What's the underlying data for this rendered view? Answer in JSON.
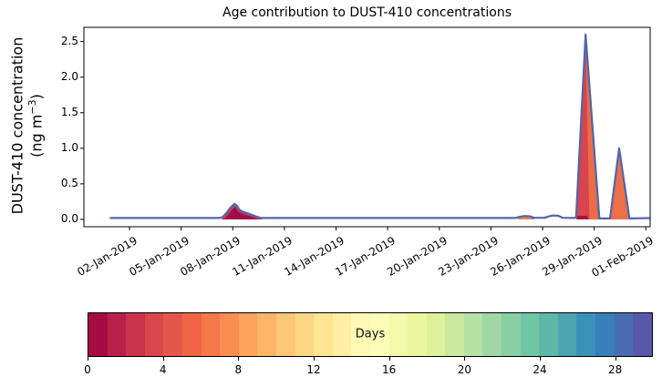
{
  "figure": {
    "ylabel_line1": "DUST-410 concentration",
    "ylabel_unit_prefix": "(ng m",
    "ylabel_unit_exponent": "−3",
    "ylabel_unit_suffix": ")"
  },
  "chart_data": {
    "type": "area",
    "subtype": "stacked-area-colored-by-age",
    "title": "Age contribution to DUST-410 concentrations",
    "ylabel": "DUST-410 concentration (ng m⁻³)",
    "grid": false,
    "x_axis": {
      "tick_labels": [
        "02-Jan-2019",
        "05-Jan-2019",
        "08-Jan-2019",
        "11-Jan-2019",
        "14-Jan-2019",
        "17-Jan-2019",
        "20-Jan-2019",
        "23-Jan-2019",
        "26-Jan-2019",
        "29-Jan-2019",
        "01-Feb-2019"
      ],
      "tick_day_offsets": [
        0,
        3,
        6,
        9,
        12,
        15,
        18,
        21,
        24,
        27,
        30
      ],
      "range_days": [
        -2.65,
        30.25
      ],
      "tick_label_rotation_deg": 30
    },
    "y_axis": {
      "tick_values": [
        0.0,
        0.5,
        1.0,
        1.5,
        2.0,
        2.5
      ],
      "range": [
        -0.103,
        2.7
      ]
    },
    "total_line": {
      "name": "total-concentration-outline",
      "color": "#4f66ae",
      "width": 2.2,
      "points": [
        [
          -1.1,
          0.02
        ],
        [
          5.2,
          0.02
        ],
        [
          5.4,
          0.03
        ],
        [
          5.67,
          0.1
        ],
        [
          5.88,
          0.17
        ],
        [
          6.1,
          0.22
        ],
        [
          6.25,
          0.19
        ],
        [
          6.4,
          0.13
        ],
        [
          6.67,
          0.1
        ],
        [
          7.0,
          0.075
        ],
        [
          7.3,
          0.045
        ],
        [
          7.63,
          0.02
        ],
        [
          22.4,
          0.02
        ],
        [
          22.7,
          0.038
        ],
        [
          22.95,
          0.048
        ],
        [
          23.25,
          0.044
        ],
        [
          23.5,
          0.022
        ],
        [
          24.1,
          0.022
        ],
        [
          24.35,
          0.042
        ],
        [
          24.6,
          0.055
        ],
        [
          24.9,
          0.052
        ],
        [
          25.17,
          0.022
        ],
        [
          25.85,
          0.02
        ],
        [
          25.95,
          0.03
        ],
        [
          26.5,
          2.6
        ],
        [
          27.3,
          0.013
        ],
        [
          27.92,
          0.013
        ],
        [
          28.45,
          1.0
        ],
        [
          29.05,
          0.013
        ],
        [
          30.2,
          0.018
        ]
      ]
    },
    "area_layers": [
      {
        "name": "peak-08jan-aged-rim",
        "age_days": "2-4",
        "color": "#c43a50",
        "points": [
          [
            5.35,
            0
          ],
          [
            5.4,
            0.03
          ],
          [
            5.67,
            0.1
          ],
          [
            5.88,
            0.17
          ],
          [
            6.1,
            0.22
          ],
          [
            6.25,
            0.19
          ],
          [
            6.4,
            0.13
          ],
          [
            6.67,
            0.1
          ],
          [
            7.0,
            0.075
          ],
          [
            7.3,
            0.045
          ],
          [
            7.63,
            0.02
          ],
          [
            7.72,
            0
          ]
        ]
      },
      {
        "name": "peak-08jan-young-core",
        "age_days": "0-2",
        "color": "#a20d48",
        "points": [
          [
            5.5,
            0
          ],
          [
            5.78,
            0.075
          ],
          [
            5.98,
            0.14
          ],
          [
            6.13,
            0.175
          ],
          [
            6.32,
            0.105
          ],
          [
            6.62,
            0.07
          ],
          [
            7.0,
            0.045
          ],
          [
            7.32,
            0.018
          ],
          [
            7.5,
            0
          ]
        ]
      },
      {
        "name": "bump-25jan-orange",
        "age_days": "6-8",
        "color": "#e8834f",
        "points": [
          [
            22.5,
            0
          ],
          [
            22.7,
            0.035
          ],
          [
            22.95,
            0.045
          ],
          [
            23.25,
            0.042
          ],
          [
            23.5,
            0.016
          ],
          [
            23.55,
            0
          ]
        ]
      },
      {
        "name": "peak-29jan-orange",
        "age_days": "5-8",
        "color": "#ec6c45",
        "points": [
          [
            25.95,
            0
          ],
          [
            26.5,
            2.6
          ],
          [
            27.35,
            0
          ]
        ]
      },
      {
        "name": "peak-29jan-red",
        "age_days": "3-5",
        "color": "#d8454f",
        "points": [
          [
            25.95,
            0
          ],
          [
            26.5,
            2.6
          ],
          [
            26.72,
            0
          ]
        ]
      },
      {
        "name": "peak-29jan-dark-base",
        "age_days": "0-3",
        "color": "#a91148",
        "points": [
          [
            26.0,
            0
          ],
          [
            26.02,
            0.05
          ],
          [
            26.6,
            0.05
          ],
          [
            26.65,
            0
          ]
        ]
      },
      {
        "name": "peak-30jan-orange",
        "age_days": "5-7",
        "color": "#ed6f47",
        "points": [
          [
            27.92,
            0
          ],
          [
            28.45,
            1.0
          ],
          [
            29.05,
            0
          ]
        ]
      }
    ],
    "peaks_summary": [
      {
        "date": "08-Jan-2019",
        "max_value": 0.22,
        "dominant_age_days": "0-3"
      },
      {
        "date": "25-Jan-2019",
        "max_value": 0.05,
        "dominant_age_days": "6-8"
      },
      {
        "date": "28/29-Jan-2019",
        "max_value": 2.6,
        "dominant_age_days": "3-8"
      },
      {
        "date": "30-Jan-2019",
        "max_value": 1.0,
        "dominant_age_days": "5-7"
      }
    ]
  },
  "colorbar": {
    "label": "Days",
    "range": [
      0,
      30
    ],
    "tick_values": [
      0,
      4,
      8,
      12,
      16,
      20,
      24,
      28
    ],
    "n_segments": 30,
    "colormap": "Spectral",
    "segment_colors": [
      "#a70b44",
      "#b92049",
      "#cc344d",
      "#da464d",
      "#e45649",
      "#ef6545",
      "#f57848",
      "#f88e52",
      "#fca35c",
      "#fdb668",
      "#fdc776",
      "#fed784",
      "#fee594",
      "#feefa5",
      "#fefab6",
      "#fbfdb8",
      "#f2faab",
      "#eaf69e",
      "#dcf19a",
      "#c8e99e",
      "#b5e1a2",
      "#9fd8a4",
      "#88cfa4",
      "#71c6a5",
      "#5db8a9",
      "#4ca5b1",
      "#3b92b9",
      "#397fb9",
      "#486cb0",
      "#5859a6"
    ]
  }
}
